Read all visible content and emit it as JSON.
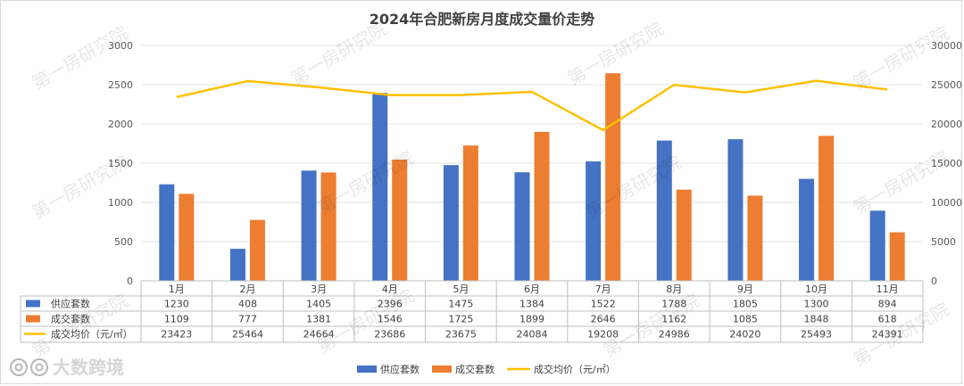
{
  "chart_data": {
    "type": "bar",
    "title": "2024年合肥新房月度成交量价走势",
    "categories": [
      "1月",
      "2月",
      "3月",
      "4月",
      "5月",
      "6月",
      "7月",
      "8月",
      "9月",
      "10月",
      "11月"
    ],
    "series": [
      {
        "name": "供应套数",
        "kind": "bar",
        "axis": "left",
        "color": "#4472C4",
        "values": [
          1230,
          408,
          1405,
          2396,
          1475,
          1384,
          1522,
          1788,
          1805,
          1300,
          894
        ]
      },
      {
        "name": "成交套数",
        "kind": "bar",
        "axis": "left",
        "color": "#ED7D31",
        "values": [
          1109,
          777,
          1381,
          1546,
          1725,
          1899,
          2646,
          1162,
          1085,
          1848,
          618
        ]
      },
      {
        "name": "成交均价（元/㎡）",
        "kind": "line",
        "axis": "right",
        "color": "#FFC000",
        "values": [
          23423,
          25464,
          24664,
          23686,
          23675,
          24084,
          19208,
          24986,
          24020,
          25493,
          24391
        ]
      }
    ],
    "ylim_left": [
      0,
      3000
    ],
    "yticks_left": [
      0,
      500,
      1000,
      1500,
      2000,
      2500,
      3000
    ],
    "ylim_right": [
      0,
      30000
    ],
    "yticks_right": [
      0,
      5000,
      10000,
      15000,
      20000,
      25000,
      30000
    ],
    "grid": true,
    "data_table": true,
    "legend_placement": "bottom"
  },
  "watermarks": {
    "text": "第一房研究院",
    "logo_text": "大数跨境",
    "logo_icon": "camera-logo-icon"
  }
}
